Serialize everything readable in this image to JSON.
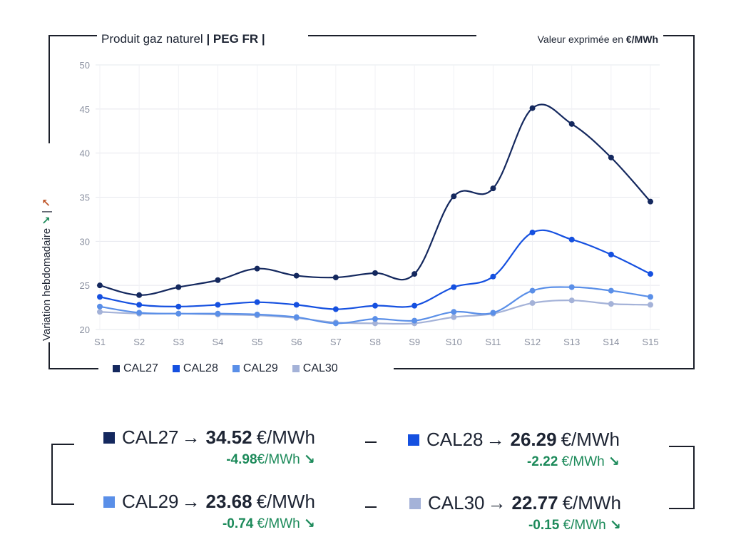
{
  "header": {
    "product_prefix": "Produit gaz naturel",
    "product_bold": "| PEG FR |",
    "unit_prefix": "Valeur exprimée en",
    "unit_bold": "€/MWh"
  },
  "y_axis_label": "Variation hebdomadaire",
  "y_axis_sep": "|",
  "icons": {
    "down": "arrow-down-right-icon",
    "up": "arrow-up-right-icon"
  },
  "colors": {
    "CAL27": "#14285e",
    "CAL28": "#1550e0",
    "CAL29": "#5a8fe8",
    "CAL30": "#a4b2d8",
    "positive_change": "#1c8a5a",
    "up_arrow": "#c0582c"
  },
  "chart_data": {
    "type": "line",
    "categories": [
      "S1",
      "S2",
      "S3",
      "S4",
      "S5",
      "S6",
      "S7",
      "S8",
      "S9",
      "S10",
      "S11",
      "S12",
      "S13",
      "S14",
      "S15"
    ],
    "ylim": [
      20,
      50
    ],
    "yticks": [
      20,
      25,
      30,
      35,
      40,
      45,
      50
    ],
    "grid": true,
    "legend_position": "bottom",
    "series": [
      {
        "name": "CAL27",
        "values": [
          25.0,
          23.9,
          24.8,
          25.6,
          26.9,
          26.1,
          25.9,
          26.4,
          26.3,
          35.1,
          36.0,
          45.1,
          43.3,
          39.5,
          34.5
        ]
      },
      {
        "name": "CAL28",
        "values": [
          23.7,
          22.8,
          22.6,
          22.8,
          23.1,
          22.8,
          22.3,
          22.7,
          22.7,
          24.8,
          26.0,
          31.0,
          30.2,
          28.5,
          26.3
        ]
      },
      {
        "name": "CAL29",
        "values": [
          22.6,
          21.9,
          21.8,
          21.8,
          21.7,
          21.4,
          20.7,
          21.2,
          21.0,
          22.0,
          21.9,
          24.4,
          24.8,
          24.4,
          23.7
        ]
      },
      {
        "name": "CAL30",
        "values": [
          22.0,
          21.8,
          21.8,
          21.7,
          21.6,
          21.3,
          20.8,
          20.7,
          20.7,
          21.4,
          21.8,
          23.0,
          23.3,
          22.9,
          22.8
        ]
      }
    ]
  },
  "summary": [
    {
      "name": "CAL27",
      "arrow": "→",
      "value": "34.52",
      "unit": "€/MWh",
      "change_value": "-4.98",
      "change_unit": "€/MWh",
      "change_arrow": "↘"
    },
    {
      "name": "CAL28",
      "arrow": "→",
      "value": "26.29",
      "unit": "€/MWh",
      "change_value": "-2.22",
      "change_unit": "€/MWh",
      "change_arrow": "↘"
    },
    {
      "name": "CAL29",
      "arrow": "→",
      "value": "23.68",
      "unit": "€/MWh",
      "change_value": "-0.74",
      "change_unit": "€/MWh",
      "change_arrow": "↘"
    },
    {
      "name": "CAL30",
      "arrow": "→",
      "value": "22.77",
      "unit": "€/MWh",
      "change_value": "-0.15",
      "change_unit": "€/MWh",
      "change_arrow": "↘"
    }
  ]
}
